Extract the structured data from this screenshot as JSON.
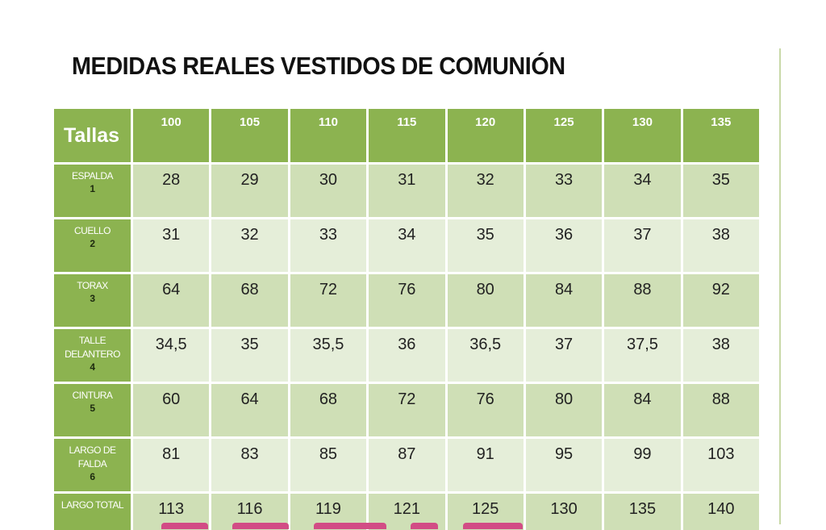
{
  "title": "MEDIDAS REALES VESTIDOS DE COMUNIÓN",
  "table": {
    "corner_label": "Tallas",
    "sizes": [
      "100",
      "105",
      "110",
      "115",
      "120",
      "125",
      "130",
      "135"
    ],
    "rows": [
      {
        "label": "ESPALDA",
        "number": "1",
        "values": [
          "28",
          "29",
          "30",
          "31",
          "32",
          "33",
          "34",
          "35"
        ]
      },
      {
        "label": "CUELLO",
        "number": "2",
        "values": [
          "31",
          "32",
          "33",
          "34",
          "35",
          "36",
          "37",
          "38"
        ]
      },
      {
        "label": "TORAX",
        "number": "3",
        "values": [
          "64",
          "68",
          "72",
          "76",
          "80",
          "84",
          "88",
          "92"
        ]
      },
      {
        "label": "TALLE DELANTERO",
        "number": "4",
        "values": [
          "34,5",
          "35",
          "35,5",
          "36",
          "36,5",
          "37",
          "37,5",
          "38"
        ]
      },
      {
        "label": "CINTURA",
        "number": "5",
        "values": [
          "60",
          "64",
          "68",
          "72",
          "76",
          "80",
          "84",
          "88"
        ]
      },
      {
        "label": "LARGO DE FALDA",
        "number": "6",
        "values": [
          "81",
          "83",
          "85",
          "87",
          "91",
          "95",
          "99",
          "103"
        ]
      },
      {
        "label": "LARGO TOTAL",
        "number": "",
        "values": [
          "113",
          "116",
          "119",
          "121",
          "125",
          "130",
          "135",
          "140"
        ]
      }
    ]
  },
  "colors": {
    "header_green": "#8cb350",
    "row_dark": "#cfdfb6",
    "row_light": "#e5eed9",
    "bottom_text_pink": "#d24c85"
  }
}
